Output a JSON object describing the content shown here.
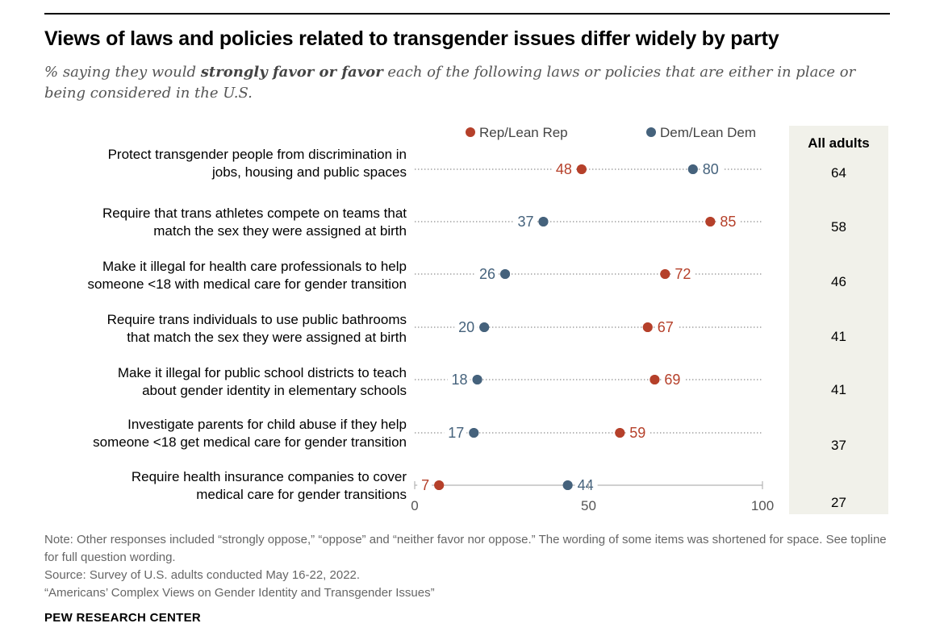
{
  "header": {
    "title": "Views of laws and policies related to transgender issues differ widely by party",
    "subtitle_prefix": "% saying they would ",
    "subtitle_bold": "strongly favor or favor",
    "subtitle_suffix": " each of the following laws or policies that are either in place or being considered in the U.S."
  },
  "colors": {
    "rep": "#b5402a",
    "dem": "#45627c",
    "panel": "#f1f1ea"
  },
  "legend": {
    "rep": "Rep/Lean Rep",
    "dem": "Dem/Lean Dem"
  },
  "all_adults_header": "All adults",
  "chart_data": {
    "type": "scatter",
    "subtype": "dot-plot",
    "xlim": [
      0,
      100
    ],
    "x_ticks": [
      "0",
      "50",
      "100"
    ],
    "categories": [
      {
        "line1": "Protect transgender people from discrimination in",
        "line2": "jobs, housing and public spaces"
      },
      {
        "line1": "Require that trans athletes compete on teams that",
        "line2": "match the sex they were assigned at birth"
      },
      {
        "line1": "Make it illegal for health care professionals to help",
        "line2": "someone <18 with medical care for gender transition"
      },
      {
        "line1": "Require trans individuals to use public bathrooms",
        "line2": "that match the sex they were assigned at birth"
      },
      {
        "line1": "Make it illegal for public school districts to teach",
        "line2": "about gender identity in elementary schools"
      },
      {
        "line1": "Investigate parents for child abuse if they help",
        "line2": "someone <18 get medical care for gender transition"
      },
      {
        "line1": "Require health insurance companies to cover",
        "line2": "medical care for gender transitions"
      }
    ],
    "series": [
      {
        "name": "Rep/Lean Rep",
        "values": [
          48,
          85,
          72,
          67,
          69,
          59,
          7
        ]
      },
      {
        "name": "Dem/Lean Dem",
        "values": [
          80,
          37,
          26,
          20,
          18,
          17,
          44
        ]
      }
    ],
    "all_adults": [
      64,
      58,
      46,
      41,
      41,
      37,
      27
    ]
  },
  "footer": {
    "note": "Note: Other responses included “strongly oppose,” “oppose” and “neither favor nor oppose.” The wording of some items was shortened for space. See topline for full question wording.",
    "source": "Source: Survey of U.S. adults conducted May 16-22, 2022.",
    "report": "“Americans’ Complex Views on Gender Identity and Transgender Issues”",
    "brand": "PEW RESEARCH CENTER"
  }
}
